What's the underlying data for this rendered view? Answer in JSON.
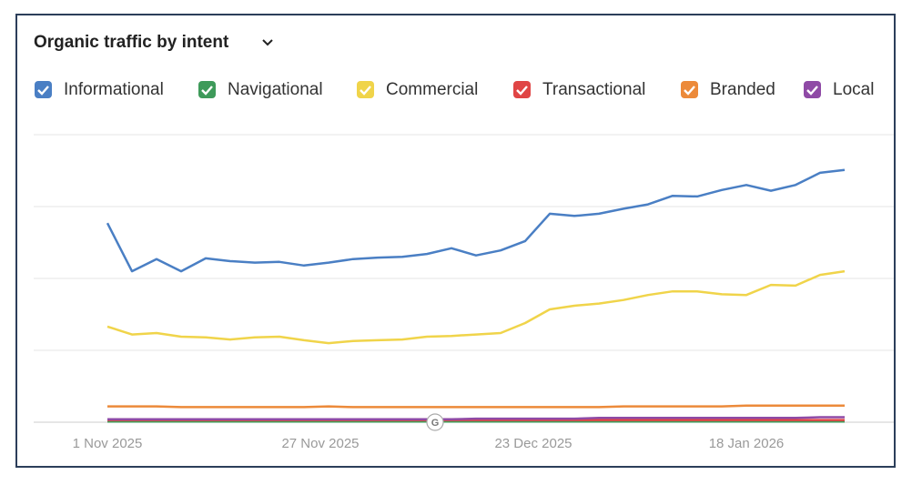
{
  "chart_data": {
    "type": "line",
    "title": "Organic traffic by intent",
    "x": [
      0,
      3,
      6,
      9,
      12,
      15,
      18,
      21,
      24,
      27,
      30,
      33,
      36,
      39,
      42,
      45,
      48,
      51,
      54,
      57,
      60,
      63,
      66,
      69,
      72,
      75,
      78,
      81,
      84,
      87,
      90
    ],
    "xlim": [
      -9,
      96
    ],
    "xticks": [
      {
        "value": 0,
        "label": "1 Nov 2025"
      },
      {
        "value": 26,
        "label": "27 Nov 2025"
      },
      {
        "value": 52,
        "label": "23 Dec 2025"
      },
      {
        "value": 78,
        "label": "18 Jan 2026"
      }
    ],
    "ylim": [
      0,
      4
    ],
    "yticks": [
      0,
      1,
      2,
      3,
      4
    ],
    "grid": true,
    "series": [
      {
        "name": "Informational",
        "color": "#4a7fc4",
        "values": [
          2.77,
          2.1,
          2.27,
          2.1,
          2.28,
          2.24,
          2.22,
          2.23,
          2.18,
          2.22,
          2.27,
          2.29,
          2.3,
          2.34,
          2.42,
          2.32,
          2.39,
          2.52,
          2.9,
          2.87,
          2.9,
          2.97,
          3.03,
          3.15,
          3.14,
          3.23,
          3.3,
          3.22,
          3.3,
          3.47,
          3.51
        ]
      },
      {
        "name": "Navigational",
        "color": "#3e9a5a",
        "values": [
          0.01,
          0.01,
          0.01,
          0.01,
          0.01,
          0.01,
          0.01,
          0.01,
          0.01,
          0.01,
          0.01,
          0.01,
          0.01,
          0.01,
          0.01,
          0.01,
          0.01,
          0.01,
          0.01,
          0.01,
          0.01,
          0.01,
          0.01,
          0.01,
          0.01,
          0.01,
          0.01,
          0.01,
          0.01,
          0.01,
          0.01
        ]
      },
      {
        "name": "Commercial",
        "color": "#f0d44a",
        "values": [
          1.33,
          1.22,
          1.24,
          1.19,
          1.18,
          1.15,
          1.18,
          1.19,
          1.14,
          1.1,
          1.13,
          1.14,
          1.15,
          1.19,
          1.2,
          1.22,
          1.24,
          1.38,
          1.57,
          1.62,
          1.65,
          1.7,
          1.77,
          1.82,
          1.82,
          1.78,
          1.77,
          1.91,
          1.9,
          2.05,
          2.1
        ]
      },
      {
        "name": "Transactional",
        "color": "#e04545",
        "values": [
          0.03,
          0.03,
          0.03,
          0.03,
          0.03,
          0.03,
          0.03,
          0.03,
          0.03,
          0.03,
          0.03,
          0.03,
          0.03,
          0.03,
          0.03,
          0.03,
          0.03,
          0.03,
          0.03,
          0.03,
          0.03,
          0.03,
          0.03,
          0.03,
          0.03,
          0.03,
          0.03,
          0.03,
          0.03,
          0.03,
          0.03
        ]
      },
      {
        "name": "Branded",
        "color": "#ec8a3a",
        "values": [
          0.22,
          0.22,
          0.22,
          0.21,
          0.21,
          0.21,
          0.21,
          0.21,
          0.21,
          0.22,
          0.21,
          0.21,
          0.21,
          0.21,
          0.21,
          0.21,
          0.21,
          0.21,
          0.21,
          0.21,
          0.21,
          0.22,
          0.22,
          0.22,
          0.22,
          0.22,
          0.23,
          0.23,
          0.23,
          0.23,
          0.23
        ]
      },
      {
        "name": "Local",
        "color": "#8f4aa6",
        "values": [
          0.04,
          0.04,
          0.04,
          0.04,
          0.04,
          0.04,
          0.04,
          0.04,
          0.04,
          0.04,
          0.04,
          0.04,
          0.04,
          0.04,
          0.04,
          0.05,
          0.05,
          0.05,
          0.05,
          0.05,
          0.06,
          0.06,
          0.06,
          0.06,
          0.06,
          0.06,
          0.06,
          0.06,
          0.06,
          0.07,
          0.07
        ]
      }
    ],
    "annotations": [
      {
        "x": 40,
        "label": "G"
      }
    ]
  }
}
